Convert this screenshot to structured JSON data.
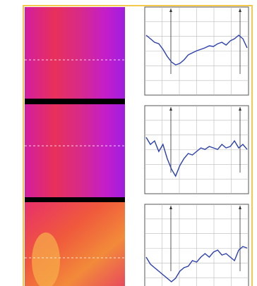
{
  "panels": [
    {
      "ylim": [
        0,
        6
      ],
      "profile": [
        4.08,
        3.84,
        3.6,
        3.5,
        3.12,
        2.64,
        2.26,
        2.06,
        2.16,
        2.4,
        2.74,
        2.88,
        3.02,
        3.12,
        3.22,
        3.36,
        3.31,
        3.5,
        3.6,
        3.41,
        3.7,
        3.84,
        4.08,
        3.84,
        3.22
      ]
    },
    {
      "ylim": [
        0,
        6
      ],
      "profile": [
        3.84,
        3.36,
        3.6,
        2.88,
        3.36,
        2.4,
        1.68,
        1.2,
        1.92,
        2.4,
        2.74,
        2.64,
        2.88,
        3.12,
        3.02,
        3.22,
        3.12,
        3.02,
        3.36,
        3.12,
        3.22,
        3.6,
        3.12,
        3.36,
        3.02
      ]
    },
    {
      "ylim": [
        0,
        6
      ],
      "profile": [
        2.4,
        1.92,
        1.68,
        1.44,
        1.2,
        0.96,
        0.72,
        0.96,
        1.44,
        1.68,
        1.78,
        2.16,
        2.06,
        2.4,
        2.64,
        2.4,
        2.74,
        2.88,
        2.54,
        2.64,
        2.4,
        2.16,
        2.88,
        3.12,
        3.02
      ]
    }
  ]
}
